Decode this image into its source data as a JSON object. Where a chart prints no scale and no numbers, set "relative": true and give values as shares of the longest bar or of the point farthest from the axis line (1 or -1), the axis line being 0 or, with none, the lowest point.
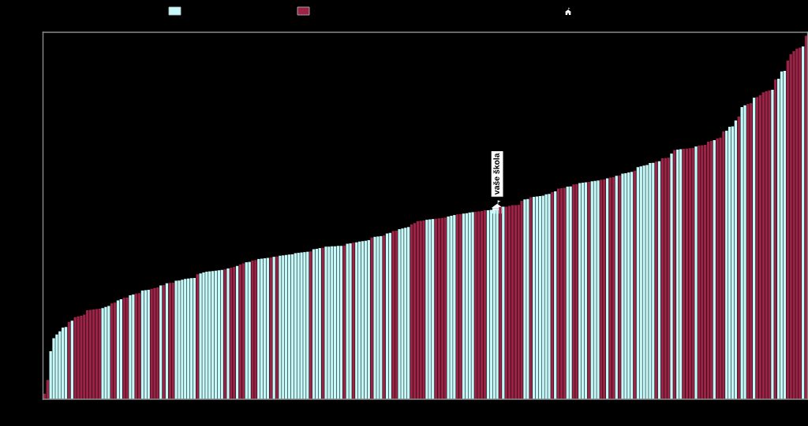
{
  "chart_data": {
    "type": "bar",
    "relative": true,
    "categories": [
      null,
      null,
      null,
      null,
      null,
      null,
      null,
      null,
      null,
      null,
      null,
      null,
      null,
      null,
      null,
      null,
      null,
      null,
      null,
      null,
      null,
      null,
      null,
      null,
      null,
      null,
      null,
      null,
      null,
      null,
      null,
      null,
      null,
      null,
      null,
      null,
      null,
      null,
      null,
      null,
      null,
      null,
      null,
      null,
      null,
      null,
      null,
      null,
      null,
      null,
      null,
      null,
      null,
      null,
      null,
      null,
      null,
      null,
      null,
      null,
      null,
      null,
      null,
      null,
      null,
      null,
      null,
      null,
      null,
      null,
      null,
      null,
      null,
      null,
      null,
      null,
      null,
      null,
      null,
      null,
      null,
      null,
      null,
      null,
      null,
      null,
      null,
      null,
      null,
      null,
      null,
      null,
      null,
      null,
      null,
      null,
      null,
      null,
      null,
      null,
      null,
      null,
      null,
      null,
      null,
      null,
      null,
      null,
      null,
      null,
      null,
      null,
      null,
      null,
      null,
      null,
      null,
      null,
      null,
      null,
      null,
      null,
      null,
      null,
      null,
      null,
      null,
      null,
      null,
      null,
      null,
      null,
      null,
      null,
      null,
      null,
      null,
      null,
      null,
      null,
      null,
      null,
      null,
      null,
      null,
      null,
      null,
      null,
      "vaše škola",
      null,
      null,
      null,
      null,
      null,
      null,
      null,
      null,
      null,
      null,
      null,
      null,
      null,
      null,
      null,
      null,
      null,
      null,
      null,
      null,
      null,
      null,
      null,
      null,
      null,
      null,
      null,
      null,
      null,
      null,
      null,
      null,
      null,
      null,
      null,
      null,
      null,
      null,
      null,
      null,
      null,
      null,
      null,
      null,
      null,
      null,
      null,
      null,
      null,
      null,
      null,
      null,
      null,
      null,
      null,
      null,
      null,
      null,
      null,
      null,
      null,
      null,
      null,
      null,
      null,
      null,
      null,
      null,
      null,
      null,
      null,
      null,
      null,
      null,
      null,
      null,
      null,
      null,
      null,
      null,
      null,
      null,
      null,
      null,
      null,
      null,
      null,
      null,
      null,
      null,
      null,
      null,
      null,
      null,
      null,
      null,
      null,
      null,
      null,
      null,
      null
    ],
    "values": [
      0.015,
      0.053,
      0.132,
      0.168,
      0.178,
      0.187,
      0.197,
      0.199,
      0.213,
      0.216,
      0.226,
      0.228,
      0.23,
      0.233,
      0.245,
      0.246,
      0.247,
      0.248,
      0.249,
      0.251,
      0.254,
      0.257,
      0.264,
      0.266,
      0.272,
      0.275,
      0.279,
      0.28,
      0.286,
      0.288,
      0.291,
      0.292,
      0.299,
      0.3,
      0.301,
      0.304,
      0.306,
      0.308,
      0.313,
      0.314,
      0.319,
      0.32,
      0.321,
      0.326,
      0.327,
      0.329,
      0.331,
      0.332,
      0.333,
      0.334,
      0.344,
      0.346,
      0.349,
      0.351,
      0.352,
      0.353,
      0.354,
      0.355,
      0.356,
      0.358,
      0.36,
      0.362,
      0.364,
      0.367,
      0.371,
      0.374,
      0.377,
      0.378,
      0.382,
      0.383,
      0.386,
      0.387,
      0.388,
      0.389,
      0.39,
      0.392,
      0.393,
      0.395,
      0.396,
      0.397,
      0.398,
      0.399,
      0.402,
      0.403,
      0.404,
      0.405,
      0.406,
      0.407,
      0.413,
      0.414,
      0.416,
      0.417,
      0.42,
      0.42,
      0.421,
      0.421,
      0.422,
      0.422,
      0.423,
      0.428,
      0.429,
      0.431,
      0.432,
      0.434,
      0.435,
      0.436,
      0.438,
      0.445,
      0.447,
      0.448,
      0.449,
      0.451,
      0.456,
      0.458,
      0.463,
      0.464,
      0.468,
      0.47,
      0.472,
      0.474,
      0.481,
      0.485,
      0.49,
      0.491,
      0.492,
      0.494,
      0.495,
      0.496,
      0.497,
      0.498,
      0.499,
      0.5,
      0.503,
      0.505,
      0.507,
      0.509,
      0.51,
      0.511,
      0.512,
      0.514,
      0.515,
      0.516,
      0.517,
      0.518,
      0.52,
      0.52,
      0.521,
      0.521,
      0.524,
      0.529,
      0.53,
      0.53,
      0.532,
      0.534,
      0.534,
      0.535,
      0.546,
      0.55,
      0.551,
      0.556,
      0.557,
      0.558,
      0.559,
      0.56,
      0.564,
      0.565,
      0.57,
      0.572,
      0.58,
      0.581,
      0.582,
      0.585,
      0.586,
      0.591,
      0.592,
      0.595,
      0.596,
      0.597,
      0.598,
      0.6,
      0.601,
      0.602,
      0.604,
      0.605,
      0.608,
      0.61,
      0.611,
      0.615,
      0.616,
      0.621,
      0.622,
      0.624,
      0.626,
      0.629,
      0.639,
      0.641,
      0.643,
      0.645,
      0.65,
      0.651,
      0.654,
      0.655,
      0.663,
      0.664,
      0.665,
      0.676,
      0.686,
      0.687,
      0.688,
      0.689,
      0.69,
      0.691,
      0.692,
      0.696,
      0.698,
      0.699,
      0.7,
      0.709,
      0.711,
      0.713,
      0.718,
      0.72,
      0.737,
      0.739,
      0.75,
      0.751,
      0.767,
      0.778,
      0.804,
      0.809,
      0.813,
      0.815,
      0.83,
      0.832,
      0.837,
      0.845,
      0.848,
      0.85,
      0.852,
      0.88,
      0.882,
      0.902,
      0.904,
      0.932,
      0.95,
      0.958,
      0.965,
      0.968,
      0.971,
      1.0
    ],
    "colors": [
      "#9b2346",
      "#9b2346",
      "#c6f9f9",
      "#c6f9f9",
      "#c6f9f9",
      "#c6f9f9",
      "#c6f9f9",
      "#c6f9f9",
      "#9b2346",
      "#c6f9f9",
      "#9b2346",
      "#9b2346",
      "#9b2346",
      "#9b2346",
      "#9b2346",
      "#9b2346",
      "#9b2346",
      "#9b2346",
      "#9b2346",
      "#c6f9f9",
      "#c6f9f9",
      "#c6f9f9",
      "#9b2346",
      "#9b2346",
      "#c6f9f9",
      "#c6f9f9",
      "#9b2346",
      "#9b2346",
      "#c6f9f9",
      "#c6f9f9",
      "#9b2346",
      "#9b2346",
      "#c6f9f9",
      "#c6f9f9",
      "#c6f9f9",
      "#9b2346",
      "#9b2346",
      "#9b2346",
      "#c6f9f9",
      "#9b2346",
      "#c6f9f9",
      "#9b2346",
      "#9b2346",
      "#c6f9f9",
      "#c6f9f9",
      "#c6f9f9",
      "#c6f9f9",
      "#c6f9f9",
      "#c6f9f9",
      "#c6f9f9",
      "#9b2346",
      "#c6f9f9",
      "#c6f9f9",
      "#c6f9f9",
      "#c6f9f9",
      "#c6f9f9",
      "#c6f9f9",
      "#c6f9f9",
      "#c6f9f9",
      "#9b2346",
      "#c6f9f9",
      "#9b2346",
      "#9b2346",
      "#c6f9f9",
      "#9b2346",
      "#9b2346",
      "#c6f9f9",
      "#c6f9f9",
      "#9b2346",
      "#9b2346",
      "#c6f9f9",
      "#c6f9f9",
      "#c6f9f9",
      "#c6f9f9",
      "#9b2346",
      "#c6f9f9",
      "#9b2346",
      "#c6f9f9",
      "#c6f9f9",
      "#c6f9f9",
      "#c6f9f9",
      "#c6f9f9",
      "#c6f9f9",
      "#c6f9f9",
      "#c6f9f9",
      "#c6f9f9",
      "#c6f9f9",
      "#9b2346",
      "#c6f9f9",
      "#c6f9f9",
      "#c6f9f9",
      "#9b2346",
      "#c6f9f9",
      "#c6f9f9",
      "#c6f9f9",
      "#c6f9f9",
      "#c6f9f9",
      "#c6f9f9",
      "#9b2346",
      "#c6f9f9",
      "#c6f9f9",
      "#9b2346",
      "#c6f9f9",
      "#c6f9f9",
      "#c6f9f9",
      "#c6f9f9",
      "#c6f9f9",
      "#9b2346",
      "#c6f9f9",
      "#c6f9f9",
      "#c6f9f9",
      "#9b2346",
      "#c6f9f9",
      "#c6f9f9",
      "#9b2346",
      "#9b2346",
      "#c6f9f9",
      "#c6f9f9",
      "#c6f9f9",
      "#c6f9f9",
      "#9b2346",
      "#9b2346",
      "#9b2346",
      "#9b2346",
      "#9b2346",
      "#c6f9f9",
      "#c6f9f9",
      "#c6f9f9",
      "#9b2346",
      "#9b2346",
      "#9b2346",
      "#9b2346",
      "#c6f9f9",
      "#c6f9f9",
      "#c6f9f9",
      "#9b2346",
      "#9b2346",
      "#c6f9f9",
      "#c6f9f9",
      "#c6f9f9",
      "#c6f9f9",
      "#9b2346",
      "#9b2346",
      "#9b2346",
      "#9b2346",
      "#c6f9f9",
      "#c6f9f9",
      "#c6f9f9",
      "#c6f9f9",
      "#9b2346",
      "#c6f9f9",
      "#9b2346",
      "#9b2346",
      "#9b2346",
      "#9b2346",
      "#9b2346",
      "#9b2346",
      "#c6f9f9",
      "#c6f9f9",
      "#9b2346",
      "#c6f9f9",
      "#c6f9f9",
      "#c6f9f9",
      "#c6f9f9",
      "#c6f9f9",
      "#c6f9f9",
      "#9b2346",
      "#c6f9f9",
      "#9b2346",
      "#9b2346",
      "#9b2346",
      "#c6f9f9",
      "#c6f9f9",
      "#9b2346",
      "#9b2346",
      "#c6f9f9",
      "#c6f9f9",
      "#c6f9f9",
      "#9b2346",
      "#c6f9f9",
      "#c6f9f9",
      "#c6f9f9",
      "#9b2346",
      "#9b2346",
      "#c6f9f9",
      "#9b2346",
      "#9b2346",
      "#c6f9f9",
      "#9b2346",
      "#c6f9f9",
      "#c6f9f9",
      "#c6f9f9",
      "#c6f9f9",
      "#9b2346",
      "#c6f9f9",
      "#c6f9f9",
      "#c6f9f9",
      "#c6f9f9",
      "#c6f9f9",
      "#c6f9f9",
      "#9b2346",
      "#c6f9f9",
      "#9b2346",
      "#9b2346",
      "#9b2346",
      "#c6f9f9",
      "#9b2346",
      "#c6f9f9",
      "#c6f9f9",
      "#9b2346",
      "#9b2346",
      "#9b2346",
      "#9b2346",
      "#c6f9f9",
      "#9b2346",
      "#9b2346",
      "#9b2346",
      "#9b2346",
      "#9b2346",
      "#c6f9f9",
      "#9b2346",
      "#9b2346",
      "#9b2346",
      "#c6f9f9",
      "#c6f9f9",
      "#c6f9f9",
      "#c6f9f9",
      "#9b2346",
      "#c6f9f9",
      "#c6f9f9",
      "#9b2346",
      "#9b2346",
      "#c6f9f9",
      "#9b2346",
      "#9b2346",
      "#9b2346",
      "#9b2346",
      "#9b2346",
      "#c6f9f9",
      "#9b2346",
      "#c6f9f9",
      "#c6f9f9",
      "#c6f9f9",
      "#9b2346",
      "#9b2346",
      "#9b2346",
      "#9b2346",
      "#9b2346",
      "#c6f9f9",
      "#9b2346"
    ]
  }
}
